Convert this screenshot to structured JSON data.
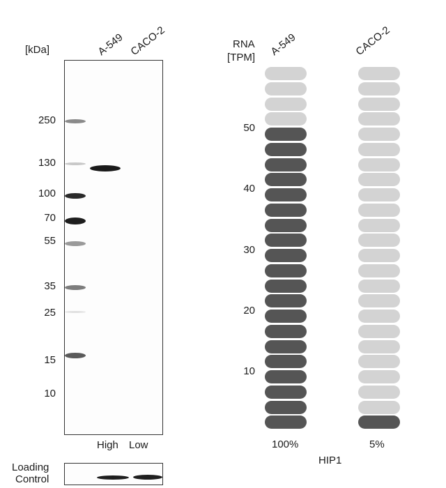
{
  "blot": {
    "kda_label": "[kDa]",
    "lanes": [
      "A-549",
      "CACO-2"
    ],
    "markers": [
      "250",
      "130",
      "100",
      "70",
      "55",
      "35",
      "25",
      "15",
      "10"
    ],
    "expression_labels": [
      "High",
      "Low"
    ],
    "loading_control_label": [
      "Loading",
      "Control"
    ]
  },
  "rna": {
    "header": [
      "RNA",
      "[TPM]"
    ],
    "cell_lines": [
      "A-549",
      "CACO-2"
    ],
    "ticks": [
      "50",
      "40",
      "30",
      "20",
      "10"
    ],
    "percentages": [
      "100%",
      "5%"
    ],
    "gene": "HIP1"
  },
  "chart_data": {
    "type": "bar",
    "categories": [
      "A-549",
      "CACO-2"
    ],
    "values": [
      100,
      5
    ],
    "value_unit": "%",
    "segments_total": 24,
    "segments_filled": [
      20,
      1
    ],
    "ylabel": "RNA [TPM]",
    "ytick_labels": [
      "50",
      "40",
      "30",
      "20",
      "10"
    ],
    "xlabel": "HIP1",
    "colors": {
      "filled": "#555555",
      "empty": "#d3d3d3"
    }
  }
}
